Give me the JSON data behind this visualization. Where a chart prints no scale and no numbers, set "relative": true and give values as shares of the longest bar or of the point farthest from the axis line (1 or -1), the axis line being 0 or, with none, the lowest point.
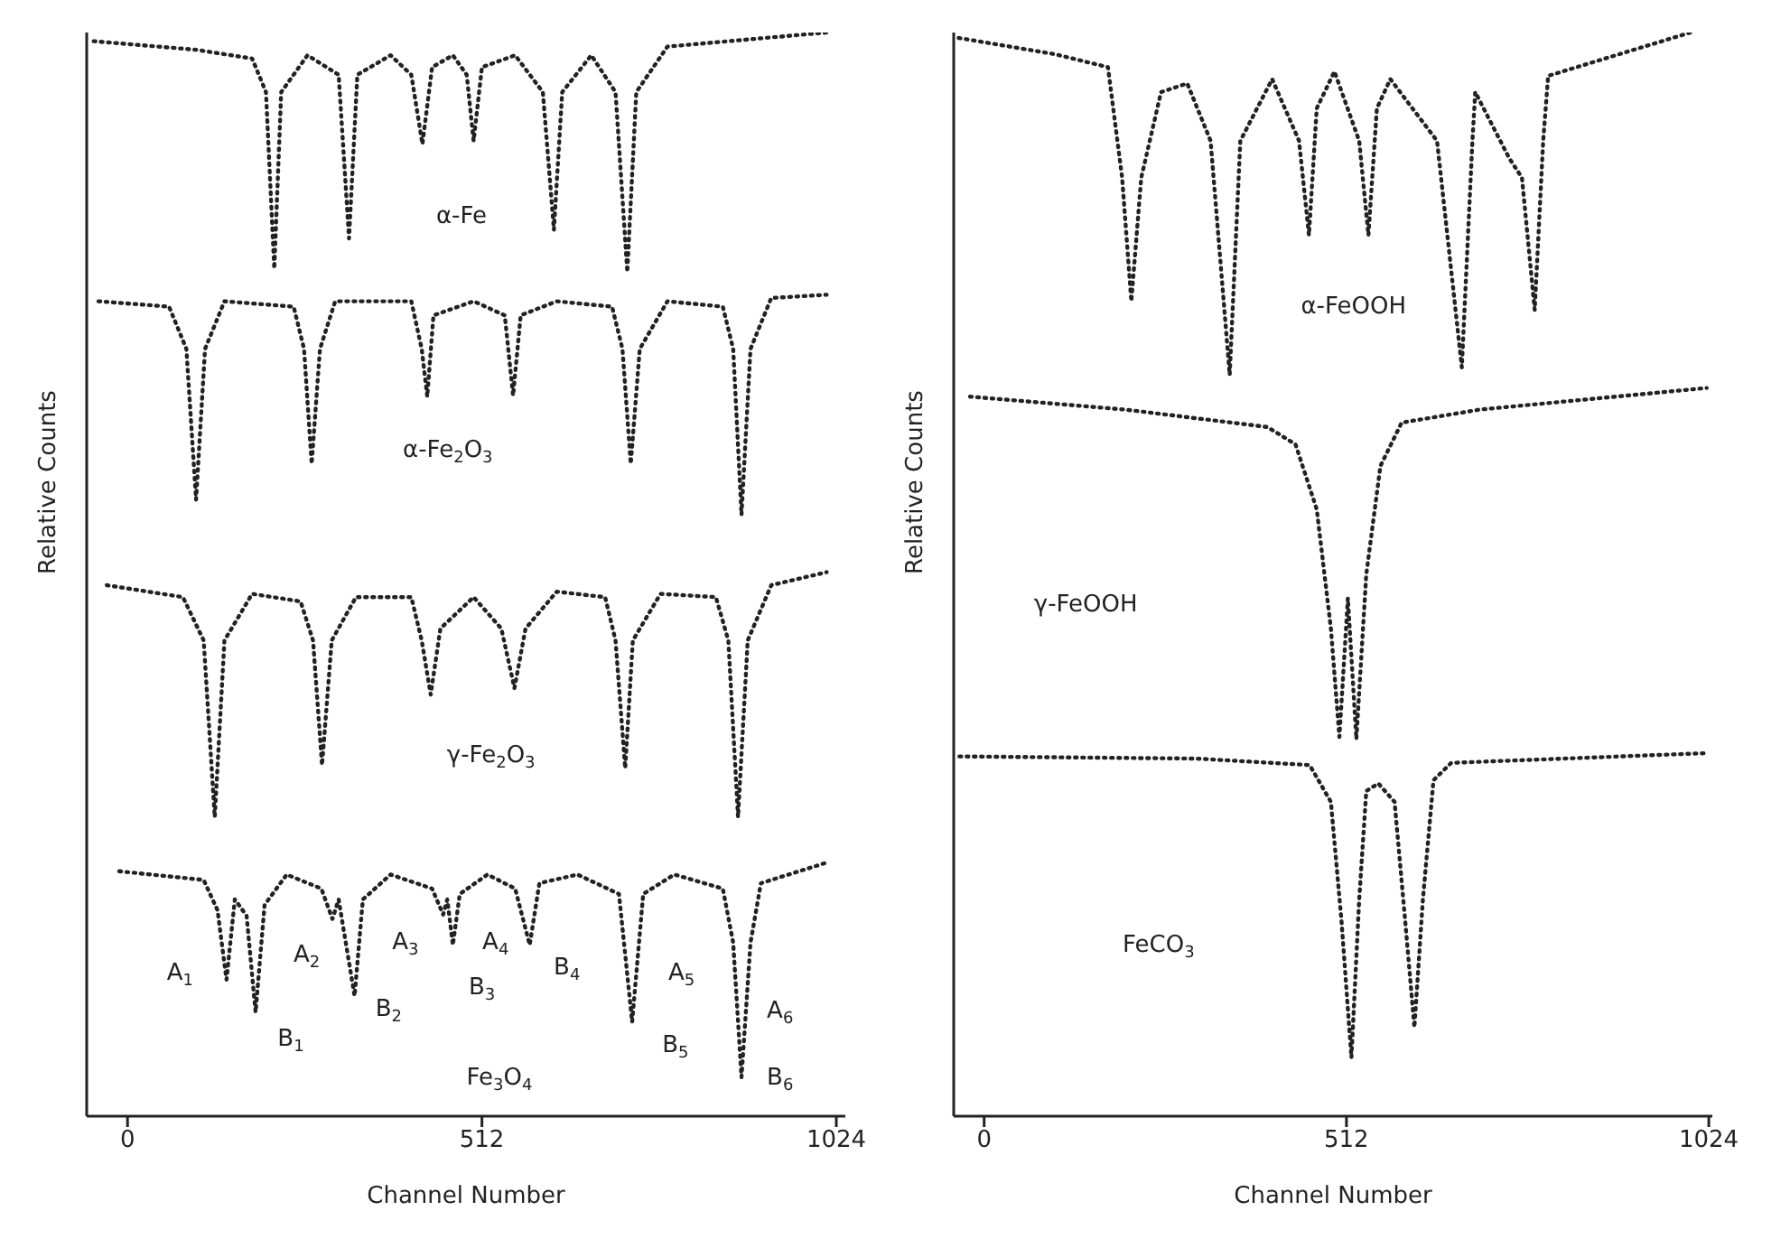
{
  "chart_data": [
    {
      "type": "line",
      "relative": true,
      "xlabel": "Channel Number",
      "ylabel": "Relative Counts",
      "xlim": [
        -59,
        1037
      ],
      "xticks": [
        0,
        512,
        1024
      ],
      "grid": false,
      "legend": false,
      "marker": "none",
      "line_style": "dotted",
      "series": [
        {
          "color": "#222222",
          "x": [
            -49,
            100,
            180,
            200,
            212,
            222,
            260,
            305,
            320,
            332,
            380,
            410,
            426,
            440,
            470,
            490,
            500,
            512,
            560,
            600,
            616,
            628,
            670,
            705,
            722,
            735,
            780,
            1010
          ],
          "values": [
            0.992,
            0.984,
            0.976,
            0.945,
            0.782,
            0.945,
            0.979,
            0.961,
            0.81,
            0.961,
            0.979,
            0.961,
            0.897,
            0.968,
            0.979,
            0.961,
            0.9,
            0.968,
            0.979,
            0.945,
            0.818,
            0.945,
            0.979,
            0.945,
            0.779,
            0.945,
            0.987,
            1.0
          ]
        },
        {
          "color": "#222222",
          "x": [
            -42,
            60,
            85,
            99,
            112,
            140,
            240,
            255,
            266,
            278,
            300,
            410,
            425,
            433,
            442,
            500,
            545,
            557,
            568,
            620,
            700,
            715,
            727,
            740,
            780,
            860,
            875,
            887,
            900,
            930,
            1010
          ],
          "values": [
            0.752,
            0.747,
            0.708,
            0.569,
            0.708,
            0.752,
            0.747,
            0.708,
            0.602,
            0.708,
            0.752,
            0.752,
            0.708,
            0.664,
            0.739,
            0.752,
            0.739,
            0.665,
            0.739,
            0.752,
            0.747,
            0.708,
            0.602,
            0.708,
            0.752,
            0.747,
            0.708,
            0.555,
            0.708,
            0.755,
            0.758
          ]
        },
        {
          "color": "#222222",
          "x": [
            -30,
            80,
            110,
            126,
            140,
            180,
            250,
            268,
            281,
            295,
            330,
            410,
            425,
            438,
            452,
            500,
            540,
            559,
            575,
            620,
            690,
            705,
            719,
            730,
            770,
            850,
            868,
            882,
            896,
            930,
            1010
          ],
          "values": [
            0.49,
            0.479,
            0.439,
            0.276,
            0.439,
            0.482,
            0.475,
            0.439,
            0.324,
            0.439,
            0.479,
            0.479,
            0.439,
            0.389,
            0.45,
            0.479,
            0.45,
            0.395,
            0.45,
            0.484,
            0.479,
            0.439,
            0.321,
            0.439,
            0.482,
            0.479,
            0.439,
            0.276,
            0.439,
            0.49,
            0.502
          ]
        },
        {
          "color": "#222222",
          "x": [
            -12,
            110,
            130,
            143,
            155,
            172,
            185,
            198,
            230,
            280,
            296,
            305,
            328,
            340,
            380,
            440,
            456,
            462,
            470,
            480,
            520,
            560,
            581,
            595,
            650,
            710,
            729,
            745,
            790,
            860,
            875,
            887,
            900,
            915,
            1010
          ],
          "values": [
            0.226,
            0.218,
            0.19,
            0.126,
            0.2,
            0.185,
            0.096,
            0.195,
            0.223,
            0.21,
            0.182,
            0.2,
            0.111,
            0.2,
            0.223,
            0.21,
            0.186,
            0.2,
            0.158,
            0.205,
            0.223,
            0.21,
            0.158,
            0.215,
            0.223,
            0.205,
            0.087,
            0.205,
            0.223,
            0.21,
            0.16,
            0.036,
            0.16,
            0.215,
            0.234
          ]
        }
      ],
      "annotations": [
        "α-Fe",
        "α-Fe$_{2}$O$_{3}$",
        "γ-Fe$_{2}$O$_{3}$",
        "A$_{1}$",
        "B$_{1}$",
        "A$_{2}$",
        "B$_{2}$",
        "A$_{3}$",
        "B$_{3}$",
        "A$_{4}$",
        "B$_{4}$",
        "A$_{5}$",
        "B$_{5}$",
        "A$_{6}$",
        "B$_{6}$",
        "Fe$_{3}$O$_{4}$"
      ]
    },
    {
      "type": "line",
      "relative": true,
      "xlabel": "Channel Number",
      "ylabel": "Relative Counts",
      "xlim": [
        -43,
        1029
      ],
      "xticks": [
        0,
        512,
        1024
      ],
      "grid": false,
      "legend": false,
      "marker": "none",
      "line_style": "dotted",
      "series": [
        {
          "color": "#222222",
          "x": [
            -36,
            100,
            175,
            195,
            208,
            222,
            250,
            287,
            320,
            347,
            362,
            407,
            445,
            459,
            470,
            495,
            530,
            543,
            555,
            574,
            640,
            675,
            690,
            694,
            742,
            760,
            778,
            790,
            797,
            998
          ],
          "values": [
            0.995,
            0.98,
            0.968,
            0.866,
            0.752,
            0.866,
            0.945,
            0.953,
            0.9,
            0.684,
            0.9,
            0.957,
            0.9,
            0.813,
            0.93,
            0.964,
            0.9,
            0.813,
            0.93,
            0.957,
            0.9,
            0.691,
            0.9,
            0.945,
            0.884,
            0.866,
            0.744,
            0.9,
            0.96,
            1.0
          ]
        },
        {
          "color": "#222222",
          "x": [
            -20,
            200,
            400,
            440,
            470,
            490,
            502,
            514,
            526,
            540,
            560,
            590,
            700,
            1021
          ],
          "values": [
            0.664,
            0.652,
            0.636,
            0.62,
            0.56,
            0.45,
            0.35,
            0.478,
            0.348,
            0.5,
            0.6,
            0.64,
            0.652,
            0.672
          ]
        },
        {
          "color": "#222222",
          "x": [
            -35,
            300,
            460,
            490,
            505,
            519,
            530,
            540,
            557,
            580,
            595,
            608,
            620,
            635,
            660,
            1020
          ],
          "values": [
            0.332,
            0.33,
            0.324,
            0.29,
            0.18,
            0.054,
            0.2,
            0.3,
            0.307,
            0.29,
            0.18,
            0.082,
            0.2,
            0.31,
            0.326,
            0.335
          ]
        }
      ],
      "annotations": [
        "α-FeOOH",
        "γ-FeOOH",
        "FeCO$_{3}$"
      ]
    }
  ]
}
